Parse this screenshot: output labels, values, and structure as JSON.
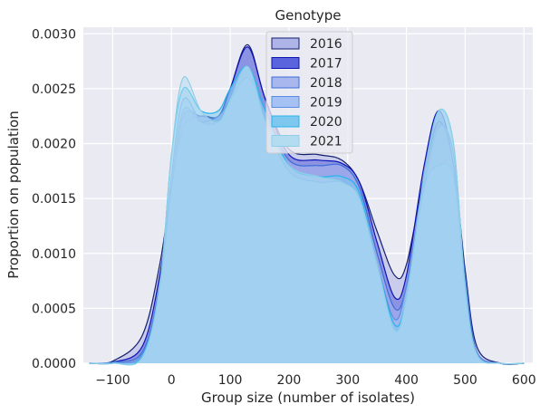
{
  "chart_data": {
    "type": "area",
    "title": "Genotype",
    "xlabel": "Group size (number of isolates)",
    "ylabel": "Proportion on population",
    "xlim": [
      -150,
      615
    ],
    "ylim": [
      0,
      0.00306
    ],
    "xticks": [
      -100,
      0,
      100,
      200,
      300,
      400,
      500,
      600
    ],
    "xtick_labels": [
      "−100",
      "0",
      "100",
      "200",
      "300",
      "400",
      "500",
      "600"
    ],
    "yticks": [
      0,
      0.0005,
      0.001,
      0.0015,
      0.002,
      0.0025,
      0.003
    ],
    "ytick_labels": [
      "0.0000",
      "0.0005",
      "0.0010",
      "0.0015",
      "0.0020",
      "0.0025",
      "0.0030"
    ],
    "grid": true,
    "legend_position": "top-center",
    "x": [
      -140,
      -100,
      -50,
      -20,
      0,
      20,
      50,
      80,
      100,
      130,
      160,
      200,
      250,
      290,
      320,
      350,
      380,
      400,
      430,
      455,
      480,
      500,
      520,
      560,
      600
    ],
    "series": [
      {
        "name": "2016",
        "fill": "#aeb3e8",
        "line": "#14206e",
        "values": [
          0.0,
          2e-05,
          0.00025,
          0.0009,
          0.0016,
          0.00215,
          0.00225,
          0.00225,
          0.0025,
          0.0029,
          0.0024,
          0.00195,
          0.0019,
          0.00185,
          0.00165,
          0.0012,
          0.0008,
          0.0009,
          0.0017,
          0.0022,
          0.0018,
          0.00085,
          0.00015,
          0.0,
          0.0
        ]
      },
      {
        "name": "2017",
        "fill": "#5a64dc",
        "line": "#0c14b4",
        "values": [
          0.0,
          1e-05,
          0.00015,
          0.0008,
          0.0016,
          0.00225,
          0.00225,
          0.00225,
          0.0025,
          0.00288,
          0.0024,
          0.0019,
          0.00185,
          0.00182,
          0.00165,
          0.0011,
          0.0006,
          0.0008,
          0.0018,
          0.0023,
          0.0018,
          0.0007,
          0.0001,
          0.0,
          0.0
        ]
      },
      {
        "name": "2018",
        "fill": "#a8b8ee",
        "line": "#3c6ed8",
        "values": [
          0.0,
          1e-05,
          0.0001,
          0.0007,
          0.0016,
          0.0023,
          0.0022,
          0.00225,
          0.0024,
          0.0026,
          0.0023,
          0.00185,
          0.0018,
          0.0018,
          0.0016,
          0.001,
          0.0005,
          0.0007,
          0.0016,
          0.0018,
          0.0017,
          0.0008,
          0.0001,
          0.0,
          0.0
        ]
      },
      {
        "name": "2019",
        "fill": "#a6c2f4",
        "line": "#5a8ce6",
        "values": [
          0.0,
          0.0,
          8e-05,
          0.0007,
          0.0017,
          0.0024,
          0.0022,
          0.0022,
          0.0024,
          0.0027,
          0.0022,
          0.00175,
          0.00165,
          0.00165,
          0.0015,
          0.0009,
          0.0004,
          0.0007,
          0.0016,
          0.00215,
          0.0019,
          0.0007,
          0.0001,
          0.0,
          0.0
        ]
      },
      {
        "name": "2020",
        "fill": "#7ec8f0",
        "line": "#26b4ec",
        "values": [
          0.0,
          0.0,
          6e-05,
          0.0007,
          0.0019,
          0.0025,
          0.0023,
          0.0023,
          0.0025,
          0.0027,
          0.0023,
          0.0018,
          0.0017,
          0.0017,
          0.00155,
          0.0009,
          0.00035,
          0.0006,
          0.0017,
          0.0023,
          0.002,
          0.0007,
          8e-05,
          0.0,
          0.0
        ]
      },
      {
        "name": "2021",
        "fill": "#b4dcf0",
        "line": "#8ecfe8",
        "values": [
          0.0,
          0.0,
          5e-05,
          0.0007,
          0.0019,
          0.0026,
          0.0023,
          0.0022,
          0.0024,
          0.0027,
          0.0022,
          0.0018,
          0.0017,
          0.00165,
          0.0015,
          0.0009,
          0.0003,
          0.0006,
          0.0017,
          0.0023,
          0.002,
          0.0007,
          8e-05,
          0.0,
          0.0
        ]
      }
    ],
    "colors": {
      "axes_bg": "#eaeaf2",
      "grid": "#ffffff",
      "text": "#262626"
    }
  }
}
